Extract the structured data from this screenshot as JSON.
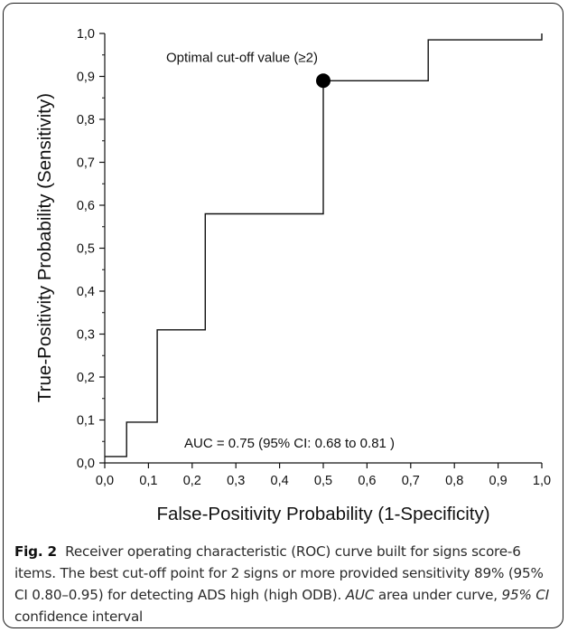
{
  "chart_data": {
    "type": "line",
    "step": true,
    "xlabel": "False-Positivity Probability (1-Specificity)",
    "ylabel": "True-Positivity Probability (Sensitivity)",
    "xlim": [
      0,
      1
    ],
    "ylim": [
      0,
      1
    ],
    "x_ticks": [
      "0,0",
      "0,1",
      "0,2",
      "0,3",
      "0,4",
      "0,5",
      "0,6",
      "0,7",
      "0,8",
      "0,9",
      "1,0"
    ],
    "y_ticks": [
      "0,0",
      "0,1",
      "0,2",
      "0,3",
      "0,4",
      "0,5",
      "0,6",
      "0,7",
      "0,8",
      "0,9",
      "1,0"
    ],
    "grid": false,
    "series": [
      {
        "x": [
          0.0,
          0.05,
          0.05,
          0.12,
          0.12,
          0.23,
          0.23,
          0.5,
          0.5,
          0.74,
          0.74,
          1.0,
          1.0
        ],
        "y": [
          0.015,
          0.015,
          0.095,
          0.095,
          0.31,
          0.31,
          0.58,
          0.58,
          0.89,
          0.89,
          0.985,
          0.985,
          1.0
        ],
        "color": "#111111"
      }
    ],
    "highlight_point": {
      "x": 0.5,
      "y": 0.89,
      "label": "Optimal cut-off value (≥2)"
    },
    "annotation": "AUC = 0.75 (95% CI: 0.68 to 0.81 )"
  },
  "caption": {
    "label": "Fig. 2",
    "text": "Receiver operating characteristic (ROC) curve built for signs score-6 items. The best cut-off point for 2 signs or more provided sensitivity 89% (95% CI 0.80–0.95) for detecting ADS high (high ODB).",
    "abbr1_term": "AUC",
    "abbr1_def": "area under curve,",
    "abbr2_term": "95% CI",
    "abbr2_def": "confidence interval"
  }
}
